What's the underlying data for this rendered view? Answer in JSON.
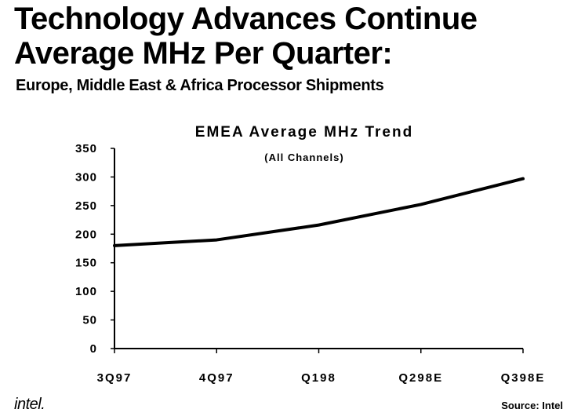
{
  "header": {
    "title_line1": "Technology Advances Continue",
    "title_line2": "Average MHz Per Quarter:",
    "subtitle": "Europe, Middle East & Africa Processor Shipments"
  },
  "chart_data": {
    "type": "line",
    "title": "EMEA Average MHz Trend",
    "subtitle": "(All Channels)",
    "categories": [
      "3Q97",
      "4Q97",
      "Q198",
      "Q298E",
      "Q398E"
    ],
    "series": [
      {
        "values": [
          180,
          190,
          216,
          252,
          297
        ]
      }
    ],
    "ylim": [
      0,
      350
    ],
    "yticks": [
      0,
      50,
      100,
      150,
      200,
      250,
      300,
      350
    ],
    "xlabel": "",
    "ylabel": "",
    "grid": false
  },
  "footer": {
    "logo_text": "intel.",
    "source": "Source: Intel"
  }
}
